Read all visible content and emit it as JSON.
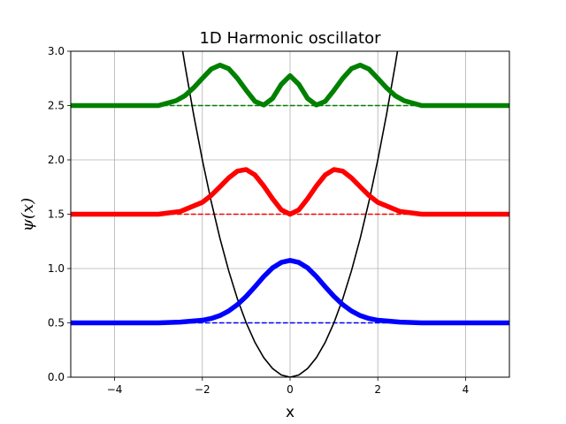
{
  "chart_data": {
    "type": "line",
    "title": "1D Harmonic oscillator",
    "xlabel": "x",
    "ylabel": "ψ(x)",
    "xlim": [
      -5,
      5
    ],
    "ylim": [
      0,
      3.0
    ],
    "xticks": [
      -4,
      -2,
      0,
      2,
      4
    ],
    "xtick_labels": [
      "−4",
      "−2",
      "0",
      "2",
      "4"
    ],
    "yticks": [
      0.0,
      0.5,
      1.0,
      1.5,
      2.0,
      2.5,
      3.0
    ],
    "ytick_labels": [
      "0.0",
      "0.5",
      "1.0",
      "1.5",
      "2.0",
      "2.5",
      "3.0"
    ],
    "grid": true,
    "potential": {
      "color": "#000000",
      "x": [
        -2.6,
        -2.4,
        -2.2,
        -2.0,
        -1.8,
        -1.6,
        -1.4,
        -1.2,
        -1.0,
        -0.8,
        -0.6,
        -0.4,
        -0.2,
        0.0,
        0.2,
        0.4,
        0.6,
        0.8,
        1.0,
        1.2,
        1.4,
        1.6,
        1.8,
        2.0,
        2.2,
        2.4,
        2.6
      ],
      "y": [
        3.38,
        2.88,
        2.42,
        2.0,
        1.62,
        1.28,
        0.98,
        0.72,
        0.5,
        0.32,
        0.18,
        0.08,
        0.02,
        0.0,
        0.02,
        0.08,
        0.18,
        0.32,
        0.5,
        0.72,
        0.98,
        1.28,
        1.62,
        2.0,
        2.42,
        2.88,
        3.38
      ]
    },
    "series": [
      {
        "color": "#0000ff",
        "baseline": 0.5,
        "x": [
          -5.0,
          -4.0,
          -3.0,
          -2.5,
          -2.0,
          -1.8,
          -1.6,
          -1.4,
          -1.2,
          -1.0,
          -0.8,
          -0.6,
          -0.4,
          -0.2,
          0.0,
          0.2,
          0.4,
          0.6,
          0.8,
          1.0,
          1.2,
          1.4,
          1.6,
          1.8,
          2.0,
          2.5,
          3.0,
          4.0,
          5.0
        ],
        "y": [
          0.5,
          0.5,
          0.5,
          0.507,
          0.524,
          0.54,
          0.567,
          0.609,
          0.668,
          0.744,
          0.833,
          0.926,
          1.006,
          1.056,
          1.075,
          1.056,
          1.006,
          0.926,
          0.833,
          0.744,
          0.668,
          0.609,
          0.567,
          0.54,
          0.524,
          0.507,
          0.5,
          0.5,
          0.5
        ]
      },
      {
        "color": "#ff0000",
        "baseline": 1.5,
        "x": [
          -5.0,
          -4.0,
          -3.0,
          -2.5,
          -2.0,
          -1.8,
          -1.6,
          -1.4,
          -1.2,
          -1.0,
          -0.8,
          -0.6,
          -0.4,
          -0.2,
          0.0,
          0.2,
          0.4,
          0.6,
          0.8,
          1.0,
          1.2,
          1.4,
          1.6,
          1.8,
          2.0,
          2.5,
          3.0,
          4.0,
          5.0
        ],
        "y": [
          1.5,
          1.5,
          1.5,
          1.526,
          1.609,
          1.672,
          1.752,
          1.834,
          1.897,
          1.911,
          1.861,
          1.76,
          1.643,
          1.54,
          1.5,
          1.54,
          1.643,
          1.76,
          1.861,
          1.911,
          1.897,
          1.834,
          1.752,
          1.672,
          1.609,
          1.526,
          1.5,
          1.5,
          1.5
        ]
      },
      {
        "color": "#008000",
        "baseline": 2.5,
        "x": [
          -5.0,
          -4.0,
          -3.0,
          -2.6,
          -2.4,
          -2.2,
          -2.0,
          -1.8,
          -1.6,
          -1.4,
          -1.2,
          -1.0,
          -0.8,
          -0.6,
          -0.4,
          -0.2,
          0.0,
          0.2,
          0.4,
          0.6,
          0.8,
          1.0,
          1.2,
          1.4,
          1.6,
          1.8,
          2.0,
          2.2,
          2.4,
          2.6,
          3.0,
          4.0,
          5.0
        ],
        "y": [
          2.5,
          2.5,
          2.5,
          2.545,
          2.59,
          2.663,
          2.75,
          2.835,
          2.872,
          2.84,
          2.75,
          2.64,
          2.538,
          2.505,
          2.565,
          2.695,
          2.775,
          2.695,
          2.565,
          2.505,
          2.538,
          2.64,
          2.75,
          2.84,
          2.872,
          2.835,
          2.75,
          2.663,
          2.59,
          2.545,
          2.5,
          2.5,
          2.5
        ]
      }
    ]
  }
}
